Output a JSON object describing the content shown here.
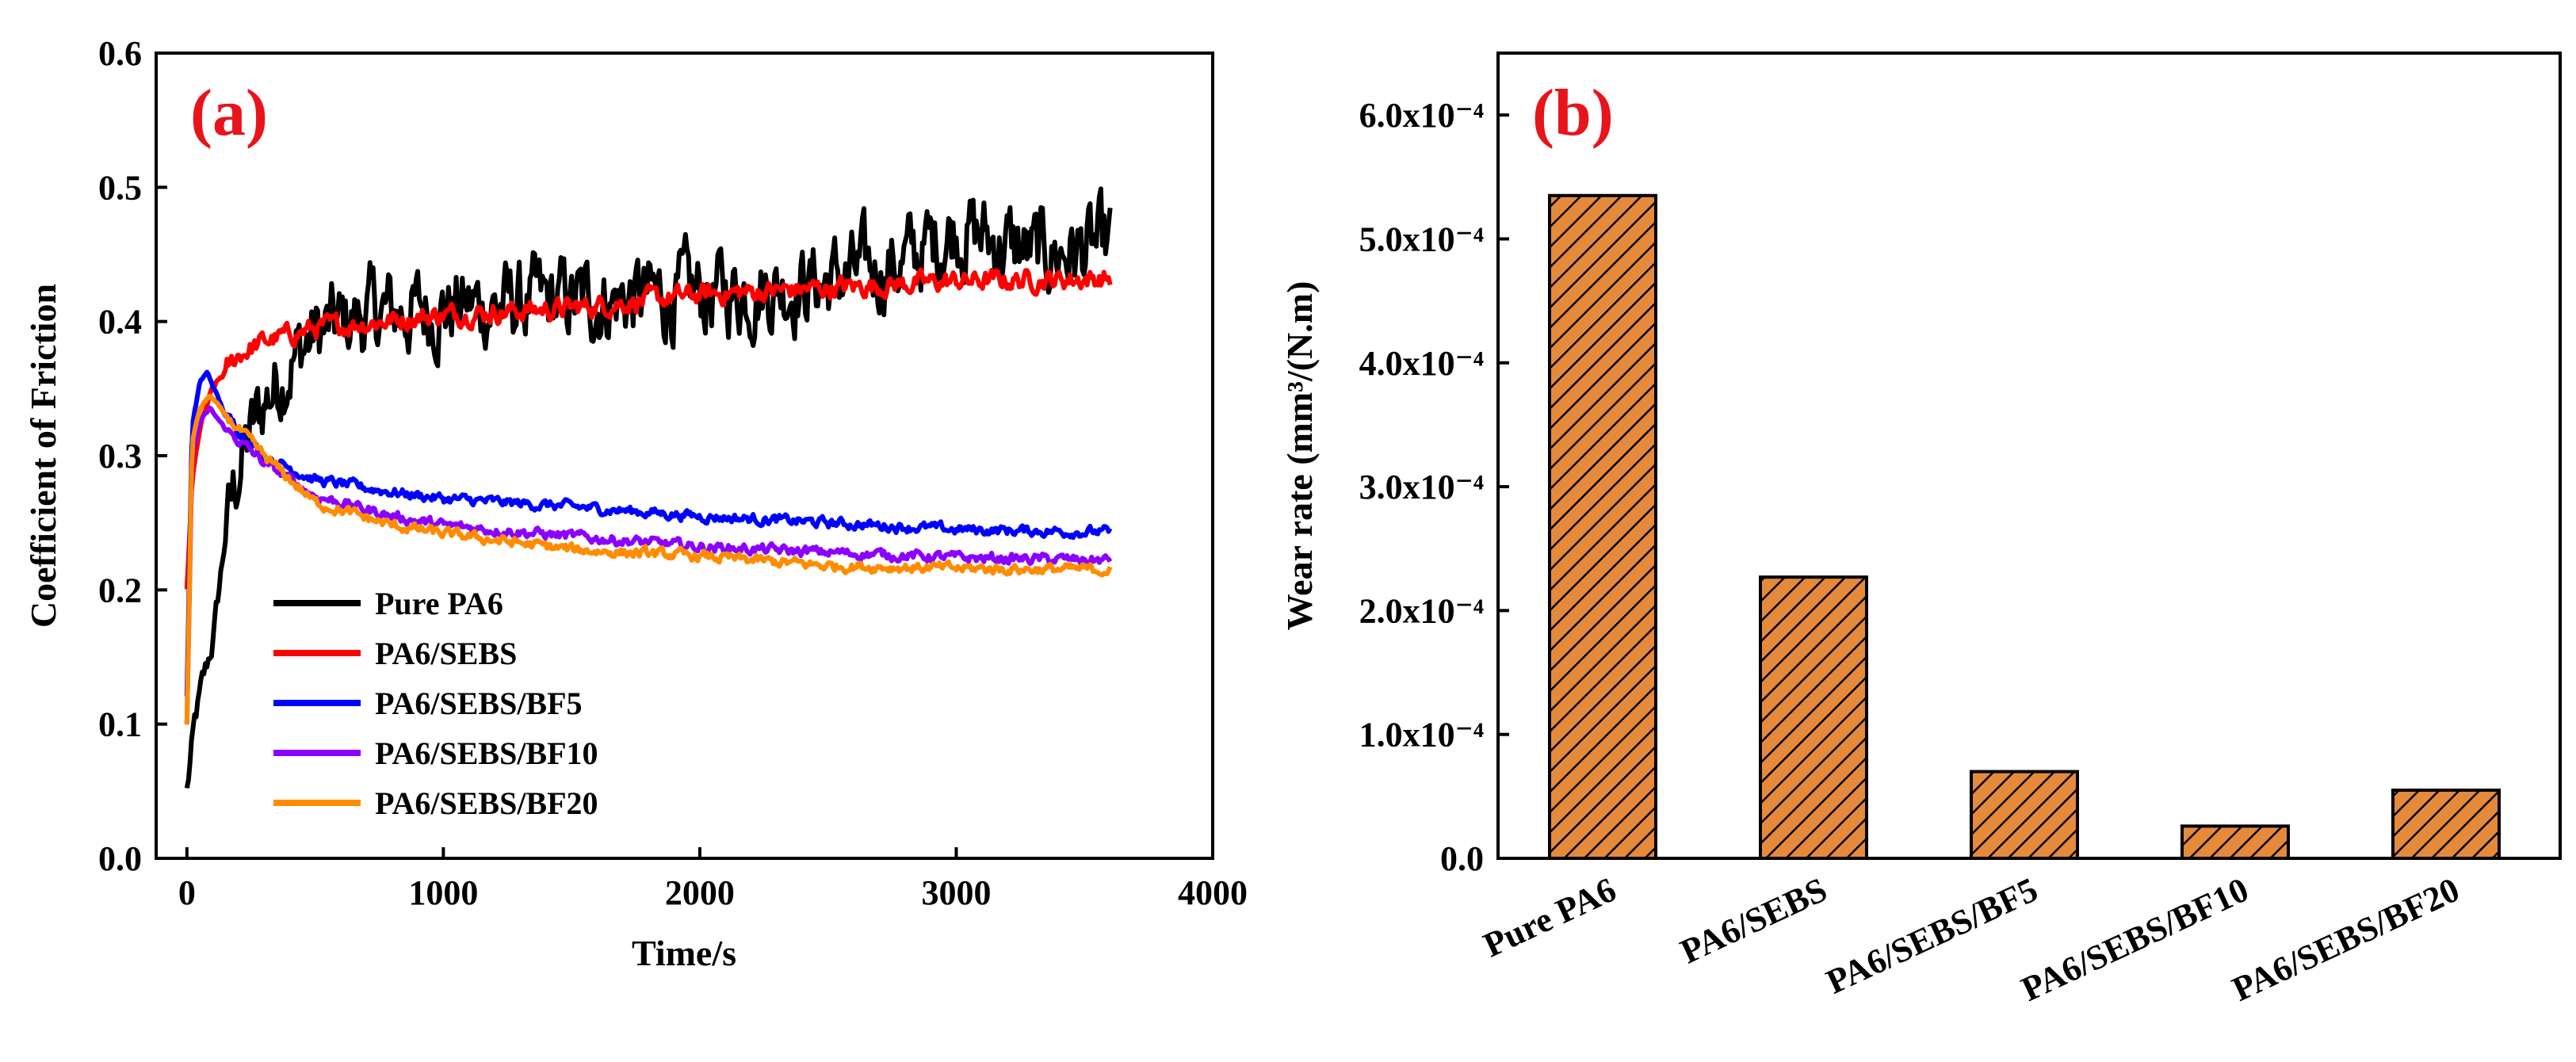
{
  "chart_data": [
    {
      "type": "line",
      "panel_label": "(a)",
      "xlabel": "Time/s",
      "ylabel": "Coefficient of Friction",
      "xlim": [
        -120,
        4000
      ],
      "ylim": [
        0.0,
        0.6
      ],
      "xticks": [
        0,
        1000,
        2000,
        3000,
        4000
      ],
      "xtick_labels": [
        "0",
        "1000",
        "2000",
        "3000",
        "4000"
      ],
      "yticks": [
        0.0,
        0.1,
        0.2,
        0.3,
        0.4,
        0.5,
        0.6
      ],
      "ytick_labels": [
        "0.0",
        "0.1",
        "0.2",
        "0.3",
        "0.4",
        "0.5",
        "0.6"
      ],
      "legend_position": "bottom-left",
      "series": [
        {
          "name": "Pure PA6",
          "color": "#000000",
          "noise": 0.025,
          "x": [
            0,
            30,
            60,
            100,
            150,
            200,
            300,
            400,
            500,
            700,
            1000,
            1500,
            2000,
            2500,
            2800,
            3000,
            3300,
            3600
          ],
          "y": [
            0.05,
            0.1,
            0.13,
            0.16,
            0.24,
            0.29,
            0.34,
            0.37,
            0.39,
            0.405,
            0.41,
            0.415,
            0.42,
            0.43,
            0.445,
            0.47,
            0.45,
            0.455
          ]
        },
        {
          "name": "PA6/SEBS",
          "color": "#ff0000",
          "noise": 0.006,
          "x": [
            0,
            20,
            50,
            100,
            200,
            300,
            500,
            1000,
            1500,
            2000,
            2500,
            3000,
            3600
          ],
          "y": [
            0.2,
            0.28,
            0.32,
            0.35,
            0.375,
            0.385,
            0.395,
            0.405,
            0.41,
            0.42,
            0.425,
            0.43,
            0.432
          ]
        },
        {
          "name": "PA6/SEBS/BF5",
          "color": "#0000ff",
          "noise": 0.003,
          "x": [
            0,
            20,
            50,
            80,
            150,
            300,
            500,
            800,
            1000,
            1500,
            2000,
            2500,
            3000,
            3600
          ],
          "y": [
            0.12,
            0.32,
            0.355,
            0.362,
            0.33,
            0.3,
            0.282,
            0.273,
            0.268,
            0.262,
            0.255,
            0.25,
            0.245,
            0.243
          ]
        },
        {
          "name": "PA6/SEBS/BF10",
          "color": "#8b00ff",
          "noise": 0.003,
          "x": [
            0,
            20,
            50,
            90,
            150,
            300,
            500,
            800,
            1000,
            1500,
            2000,
            2500,
            3000,
            3600
          ],
          "y": [
            0.1,
            0.3,
            0.325,
            0.335,
            0.32,
            0.295,
            0.27,
            0.255,
            0.248,
            0.24,
            0.232,
            0.228,
            0.224,
            0.222
          ]
        },
        {
          "name": "PA6/SEBS/BF20",
          "color": "#ff8c00",
          "noise": 0.003,
          "x": [
            0,
            20,
            50,
            90,
            150,
            300,
            500,
            800,
            1000,
            1500,
            2000,
            2500,
            3000,
            3600
          ],
          "y": [
            0.1,
            0.31,
            0.335,
            0.345,
            0.33,
            0.3,
            0.265,
            0.248,
            0.242,
            0.23,
            0.225,
            0.218,
            0.216,
            0.215
          ]
        }
      ]
    },
    {
      "type": "bar",
      "panel_label": "(b)",
      "xlabel": "",
      "ylabel": "Wear rate (mm³/(N.m)",
      "ylim": [
        0.0,
        0.00065
      ],
      "yticks": [
        0.0,
        0.0001,
        0.0002,
        0.0003,
        0.0004,
        0.0005,
        0.0006
      ],
      "ytick_labels": [
        "0.0",
        "1.0x10⁻⁴",
        "2.0x10⁻⁴",
        "3.0x10⁻⁴",
        "4.0x10⁻⁴",
        "5.0x10⁻⁴",
        "6.0x10⁻⁴"
      ],
      "categories": [
        "Pure PA6",
        "PA6/SEBS",
        "PA6/SEBS/BF5",
        "PA6/SEBS/BF10",
        "PA6/SEBS/BF20"
      ],
      "values": [
        0.000535,
        0.000227,
        7e-05,
        2.6e-05,
        5.5e-05
      ],
      "bar_color": "#e58a3a",
      "hatch_color": "#000000"
    }
  ]
}
